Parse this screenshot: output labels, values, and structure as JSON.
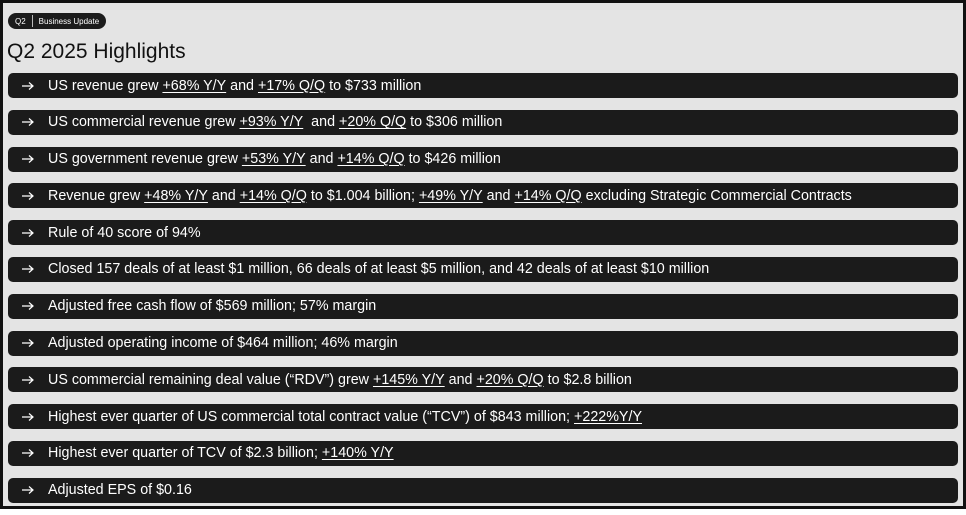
{
  "header": {
    "badge": [
      "Q2",
      "Business Update"
    ],
    "title": "Q2 2025 Highlights"
  },
  "highlights": [
    {
      "parts": [
        {
          "text": "US revenue grew "
        },
        {
          "text": "+68% Y/Y",
          "underline": true
        },
        {
          "text": " and "
        },
        {
          "text": "+17% Q/Q",
          "underline": true
        },
        {
          "text": " to $733 million"
        }
      ]
    },
    {
      "parts": [
        {
          "text": "US commercial revenue grew "
        },
        {
          "text": "+93% Y/Y",
          "underline": true
        },
        {
          "text": "  and "
        },
        {
          "text": "+20% Q/Q",
          "underline": true
        },
        {
          "text": " to $306 million"
        }
      ]
    },
    {
      "parts": [
        {
          "text": "US government revenue grew "
        },
        {
          "text": "+53% Y/Y",
          "underline": true
        },
        {
          "text": " and "
        },
        {
          "text": "+14% Q/Q",
          "underline": true
        },
        {
          "text": " to $426 million"
        }
      ]
    },
    {
      "parts": [
        {
          "text": "Revenue grew "
        },
        {
          "text": "+48% Y/Y",
          "underline": true
        },
        {
          "text": " and "
        },
        {
          "text": "+14% Q/Q",
          "underline": true
        },
        {
          "text": " to $1.004 billion; "
        },
        {
          "text": "+49% Y/Y",
          "underline": true
        },
        {
          "text": " and "
        },
        {
          "text": "+14% Q/Q",
          "underline": true
        },
        {
          "text": " excluding Strategic Commercial Contracts"
        }
      ]
    },
    {
      "parts": [
        {
          "text": "Rule of 40 score of 94%"
        }
      ]
    },
    {
      "parts": [
        {
          "text": "Closed 157 deals of at least $1 million, 66 deals of at least $5 million, and 42 deals of at least $10 million"
        }
      ]
    },
    {
      "parts": [
        {
          "text": "Adjusted free cash flow of $569 million; 57% margin"
        }
      ]
    },
    {
      "parts": [
        {
          "text": "Adjusted operating income of $464 million; 46% margin"
        }
      ]
    },
    {
      "parts": [
        {
          "text": "US commercial remaining deal value (“RDV”) grew "
        },
        {
          "text": "+145% Y/Y",
          "underline": true
        },
        {
          "text": " and "
        },
        {
          "text": "+20% Q/Q",
          "underline": true
        },
        {
          "text": " to $2.8 billion"
        }
      ]
    },
    {
      "parts": [
        {
          "text": "Highest ever quarter of US commercial total contract value (“TCV”) of $843 million; "
        },
        {
          "text": "+222%Y/Y",
          "underline": true
        }
      ]
    },
    {
      "parts": [
        {
          "text": "Highest ever quarter of TCV of $2.3 billion; "
        },
        {
          "text": "+140% Y/Y",
          "underline": true
        }
      ]
    },
    {
      "parts": [
        {
          "text": "Adjusted EPS of $0.16"
        }
      ]
    }
  ]
}
